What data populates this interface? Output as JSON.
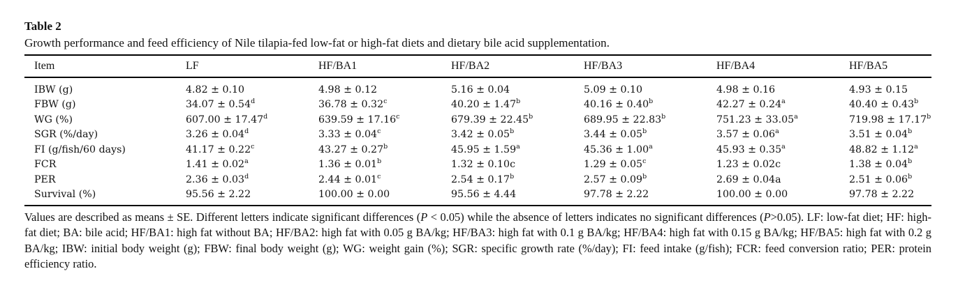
{
  "table": {
    "label": "Table 2",
    "caption": "Growth performance and feed efficiency of Nile tilapia-fed low-fat or high-fat diets and dietary bile acid supplementation.",
    "headers": [
      "Item",
      "LF",
      "HF/BA1",
      "HF/BA2",
      "HF/BA3",
      "HF/BA4",
      "HF/BA5"
    ],
    "rows": [
      {
        "item": "IBW (g)",
        "cells": [
          {
            "v": "4.82 ± 0.10",
            "s": ""
          },
          {
            "v": "4.98 ± 0.12",
            "s": ""
          },
          {
            "v": "5.16 ± 0.04",
            "s": ""
          },
          {
            "v": "5.09 ± 0.10",
            "s": ""
          },
          {
            "v": "4.98 ± 0.16",
            "s": ""
          },
          {
            "v": "4.93 ± 0.15",
            "s": ""
          }
        ]
      },
      {
        "item": "FBW (g)",
        "cells": [
          {
            "v": "34.07 ± 0.54",
            "s": "d"
          },
          {
            "v": "36.78 ± 0.32",
            "s": "c"
          },
          {
            "v": "40.20 ± 1.47",
            "s": "b"
          },
          {
            "v": "40.16 ± 0.40",
            "s": "b"
          },
          {
            "v": "42.27 ± 0.24",
            "s": "a"
          },
          {
            "v": "40.40 ± 0.43",
            "s": "b"
          }
        ]
      },
      {
        "item": "WG (%)",
        "cells": [
          {
            "v": "607.00 ± 17.47",
            "s": "d"
          },
          {
            "v": "639.59 ± 17.16",
            "s": "c"
          },
          {
            "v": "679.39 ± 22.45",
            "s": "b"
          },
          {
            "v": "689.95 ± 22.83",
            "s": "b"
          },
          {
            "v": "751.23 ± 33.05",
            "s": "a"
          },
          {
            "v": "719.98 ± 17.17",
            "s": "b"
          }
        ]
      },
      {
        "item": "SGR (%/day)",
        "cells": [
          {
            "v": "3.26 ± 0.04",
            "s": "d"
          },
          {
            "v": "3.33 ± 0.04",
            "s": "c"
          },
          {
            "v": "3.42 ± 0.05",
            "s": "b"
          },
          {
            "v": "3.44 ± 0.05",
            "s": "b"
          },
          {
            "v": "3.57 ± 0.06",
            "s": "a"
          },
          {
            "v": "3.51 ± 0.04",
            "s": "b"
          }
        ]
      },
      {
        "item": "FI (g/fish/60 days)",
        "cells": [
          {
            "v": "41.17 ± 0.22",
            "s": "c"
          },
          {
            "v": "43.27 ± 0.27",
            "s": "b"
          },
          {
            "v": "45.95 ± 1.59",
            "s": "a"
          },
          {
            "v": "45.36 ± 1.00",
            "s": "a"
          },
          {
            "v": "45.93 ± 0.35",
            "s": "a"
          },
          {
            "v": "48.82 ± 1.12",
            "s": "a"
          }
        ]
      },
      {
        "item": "FCR",
        "cells": [
          {
            "v": "1.41 ± 0.02",
            "s": "a"
          },
          {
            "v": "1.36 ± 0.01",
            "s": "b"
          },
          {
            "v": "1.32 ± 0.10c",
            "s": ""
          },
          {
            "v": "1.29 ± 0.05",
            "s": "c"
          },
          {
            "v": "1.23 ± 0.02c",
            "s": ""
          },
          {
            "v": "1.38 ± 0.04",
            "s": "b"
          }
        ]
      },
      {
        "item": "PER",
        "cells": [
          {
            "v": "2.36 ± 0.03",
            "s": "d"
          },
          {
            "v": "2.44 ± 0.01",
            "s": "c"
          },
          {
            "v": "2.54 ± 0.17",
            "s": "b"
          },
          {
            "v": "2.57 ± 0.09",
            "s": "b"
          },
          {
            "v": "2.69 ± 0.04a",
            "s": ""
          },
          {
            "v": "2.51 ± 0.06",
            "s": "b"
          }
        ]
      },
      {
        "item": "Survival (%)",
        "cells": [
          {
            "v": "95.56 ± 2.22",
            "s": ""
          },
          {
            "v": "100.00 ± 0.00",
            "s": ""
          },
          {
            "v": "95.56 ± 4.44",
            "s": ""
          },
          {
            "v": "97.78 ± 2.22",
            "s": ""
          },
          {
            "v": "100.00 ± 0.00",
            "s": ""
          },
          {
            "v": "97.78 ± 2.22",
            "s": ""
          }
        ]
      }
    ],
    "footnote": {
      "part1": "Values are described as means ± SE. Different letters indicate significant differences (",
      "p1": "P",
      "part2": " < 0.05) while the absence of letters indicates no significant differences (",
      "p2": "P",
      "part3": ">0.05). LF: low-fat diet; HF: high-fat diet; BA: bile acid; HF/BA1: high fat without BA; HF/BA2: high fat with 0.05 g BA/kg; HF/BA3: high fat with 0.1 g BA/kg; HF/BA4: high fat with 0.15 g BA/kg; HF/BA5: high fat with 0.2 g BA/kg; IBW: initial body weight (g); FBW: final body weight (g); WG: weight gain (%); SGR: specific growth rate (%/day); FI: feed intake (g/fish); FCR: feed conversion ratio; PER: protein efficiency ratio."
    }
  }
}
